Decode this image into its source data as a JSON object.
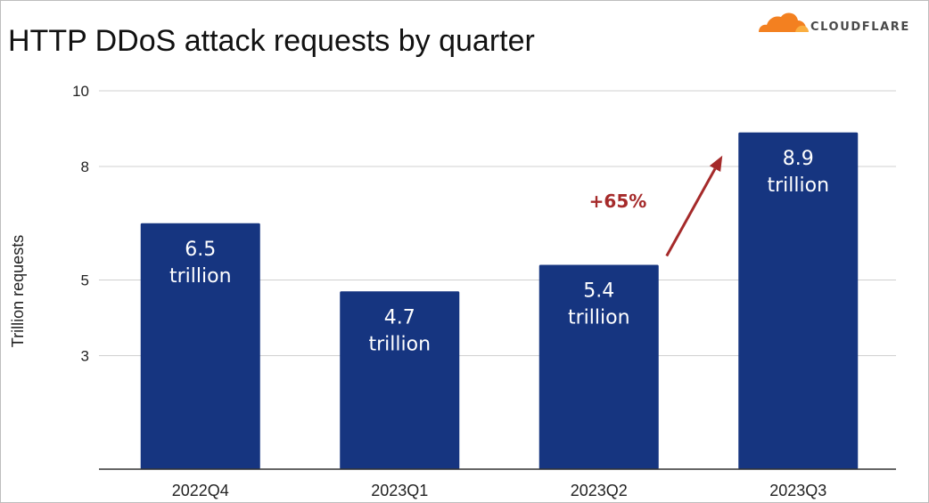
{
  "chart_data": {
    "type": "bar",
    "title": "HTTP DDoS attack requests by quarter",
    "xlabel": "",
    "ylabel": "Trillion requests",
    "categories": [
      "2022Q4",
      "2023Q1",
      "2023Q2",
      "2023Q3"
    ],
    "values": [
      6.5,
      4.7,
      5.4,
      8.9
    ],
    "data_labels": [
      [
        "6.5",
        "trillion"
      ],
      [
        "4.7",
        "trillion"
      ],
      [
        "5.4",
        "trillion"
      ],
      [
        "8.9",
        "trillion"
      ]
    ],
    "y_ticks": [
      3,
      5,
      8,
      10
    ],
    "ylim": [
      0,
      10
    ],
    "grid": true,
    "annotation": {
      "text": "+65%",
      "from_category": "2023Q2",
      "to_category": "2023Q3"
    }
  },
  "brand": {
    "name": "CLOUDFLARE",
    "logo_icon": "cloud-icon",
    "logo_color": "#f38020",
    "logo_color_light": "#faae40"
  },
  "colors": {
    "bar": "#163580",
    "annotation": "#a52a2a",
    "grid": "#d0d0d0",
    "axis": "#333333"
  }
}
